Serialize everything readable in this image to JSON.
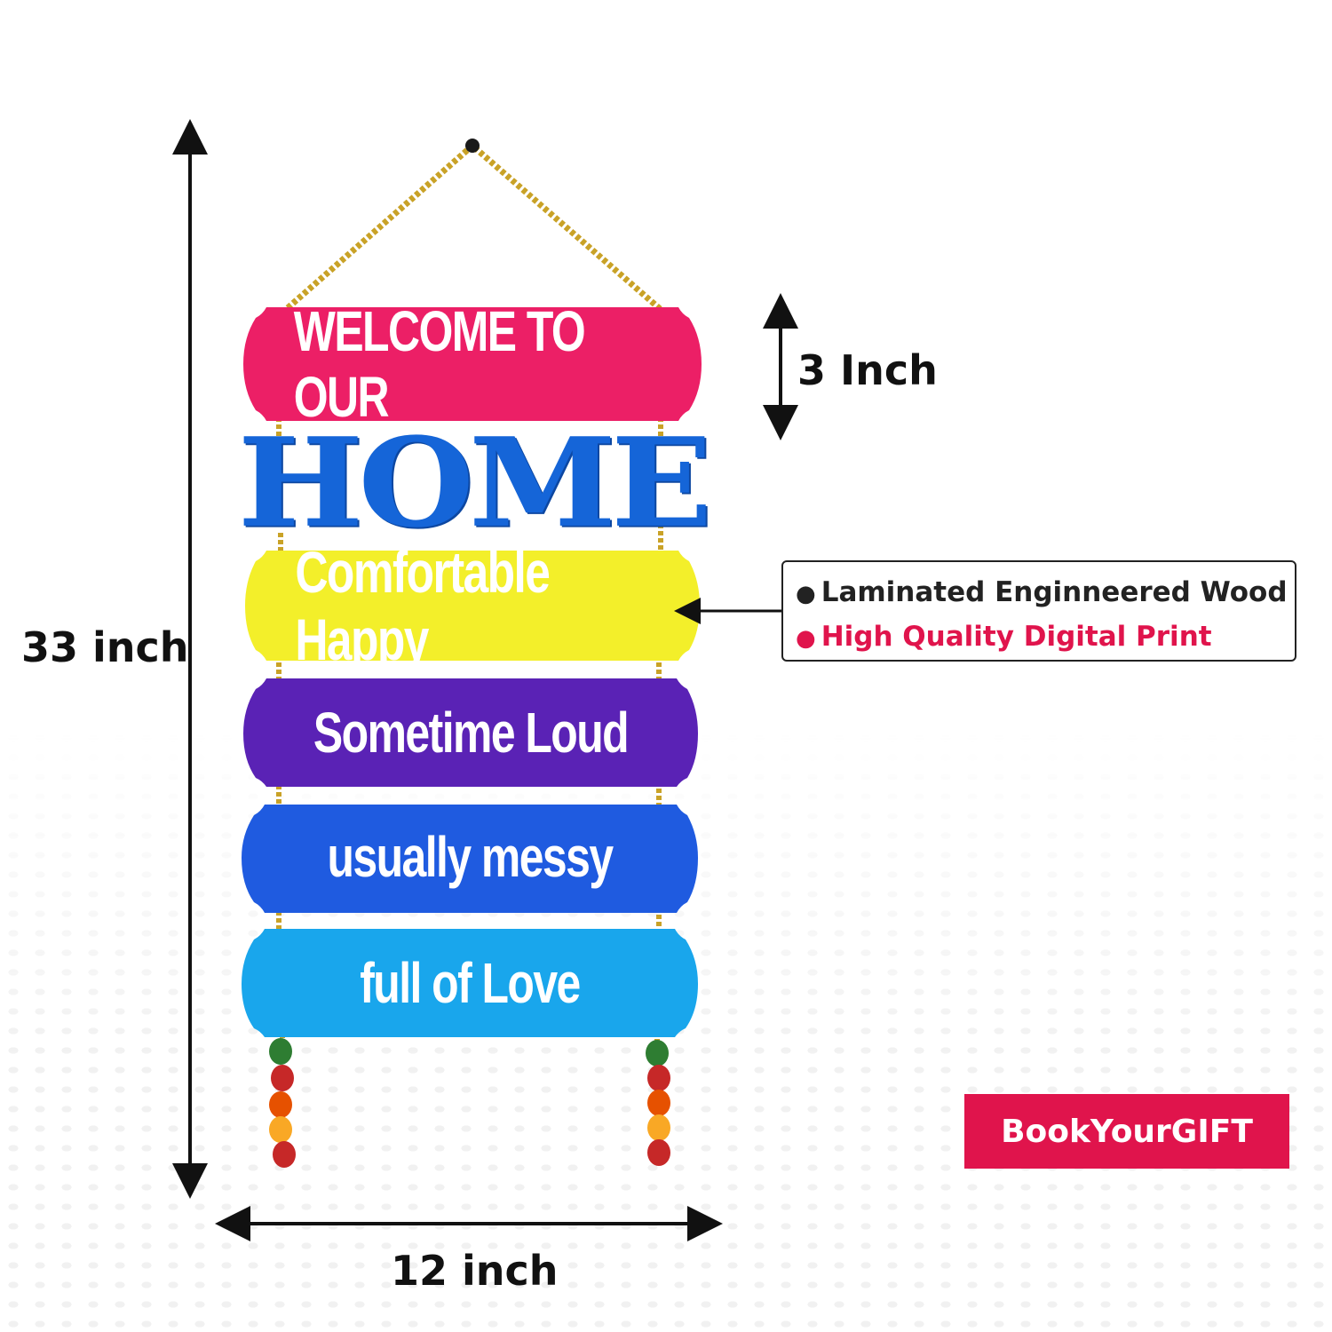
{
  "product": {
    "planks": [
      {
        "text": "WELCOME TO OUR",
        "color": "#ec1f66"
      },
      {
        "text": "Comfortable Happy",
        "color": "#f3ef2a"
      },
      {
        "text": "Sometime Loud",
        "color": "#5a22b5"
      },
      {
        "text": "usually messy",
        "color": "#1f5be0"
      },
      {
        "text": "full of Love",
        "color": "#19a6ec"
      }
    ],
    "home_word": "HOME",
    "home_color": "#1565d8",
    "rope_color": "#c9a227",
    "bead_colors": [
      "#2e7d32",
      "#c62828",
      "#e65100",
      "#f9a825",
      "#c62828"
    ]
  },
  "dimensions": {
    "height": "33 inch",
    "width": "12 inch",
    "plank_height": "3 Inch"
  },
  "features": {
    "items": [
      {
        "text": "Laminated Enginneered Wood",
        "color": "#222222"
      },
      {
        "text": "High Quality Digital Print",
        "color": "#e0144c"
      }
    ]
  },
  "brand": {
    "name": "BookYourGIFT",
    "color": "#e0144c"
  }
}
